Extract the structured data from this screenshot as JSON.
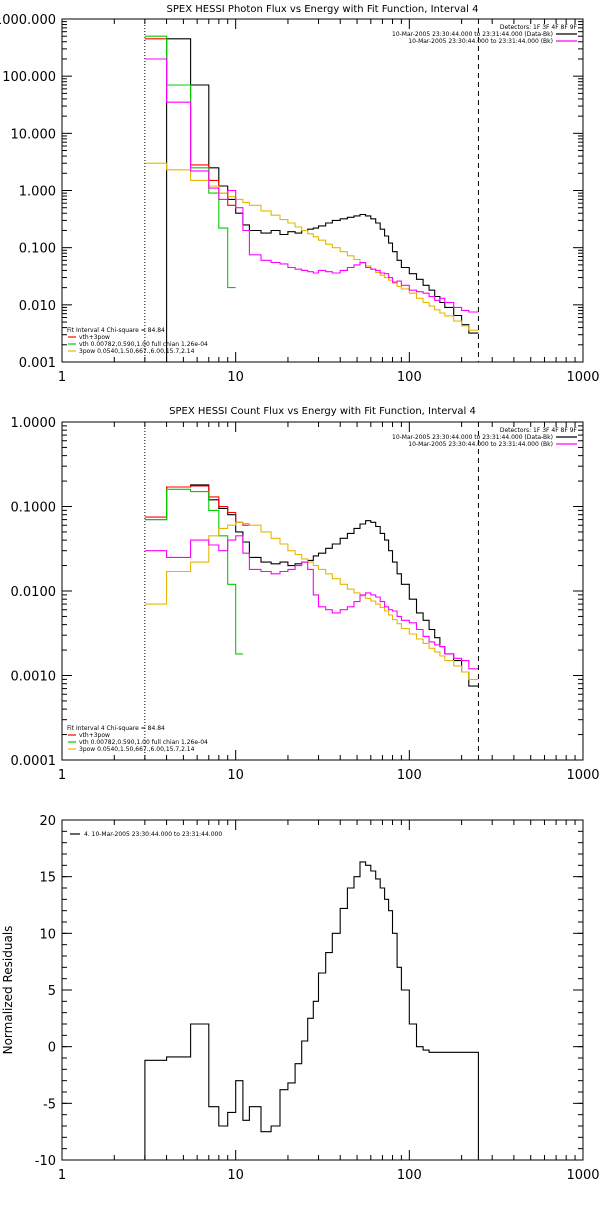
{
  "chart_data": [
    {
      "type": "line",
      "title": "SPEX HESSI Photon Flux vs Energy with Fit Function, Interval 4",
      "xscale": "log",
      "yscale": "log",
      "xlim": [
        1,
        1000
      ],
      "ylim": [
        0.001,
        1000
      ],
      "x_ticks": [
        1,
        10,
        100,
        1000
      ],
      "x_tick_labels": [
        "1",
        "10",
        "100",
        "1000"
      ],
      "y_ticks": [
        0.001,
        0.01,
        0.1,
        1,
        10,
        100,
        1000
      ],
      "y_tick_labels": [
        "0.001",
        "0.010",
        "0.100",
        "1.000",
        "10.000",
        "100.000",
        "1000.000"
      ],
      "legend_top": [
        {
          "text": "Detectors: 1F 3F 4F 8F 9F",
          "color": "#000000",
          "line": false
        },
        {
          "text": "10-Mar-2005 23:30:44.000 to 23:31:44.000 (Data-Bk)",
          "color": "#000000",
          "line": true
        },
        {
          "text": "10-Mar-2005 23:30:44.000 to 23:31:44.000 (Bk)",
          "color": "#ff00ff",
          "line": true
        }
      ],
      "legend_bottom": [
        {
          "text": "Fit Interval 4   Chi-square = 84.84",
          "color": "#000000",
          "line": false
        },
        {
          "text": "vth+3pow",
          "color": "#ff0000",
          "line": true
        },
        {
          "text": "vth 0.00782,0.590,1.00  full chian 1.26e-04",
          "color": "#00cc00",
          "line": true
        },
        {
          "text": "3pow 0.0540,1.50,667.,6.00,15.7,2.14",
          "color": "#e6b800",
          "line": true
        }
      ],
      "vlines": [
        {
          "x": 3,
          "style": "dotted"
        },
        {
          "x": 250,
          "style": "dashed"
        }
      ],
      "series": [
        {
          "color": "#000000",
          "x": [
            3,
            4,
            5.5,
            7,
            8,
            9,
            10,
            11,
            12,
            14,
            16,
            18,
            20,
            22,
            24,
            26,
            28,
            30,
            33,
            36,
            40,
            44,
            48,
            52,
            56,
            60,
            64,
            68,
            72,
            76,
            80,
            85,
            90,
            100,
            110,
            120,
            130,
            140,
            150,
            160,
            180,
            200,
            220,
            250
          ],
          "y": [
            0,
            450,
            70,
            2.5,
            1.2,
            0.7,
            0.4,
            0.25,
            0.2,
            0.18,
            0.2,
            0.17,
            0.19,
            0.18,
            0.2,
            0.21,
            0.22,
            0.24,
            0.27,
            0.3,
            0.32,
            0.34,
            0.36,
            0.38,
            0.36,
            0.32,
            0.27,
            0.21,
            0.16,
            0.12,
            0.085,
            0.06,
            0.045,
            0.035,
            0.028,
            0.022,
            0.018,
            0.014,
            0.011,
            0.009,
            0.0065,
            0.0045,
            0.0032,
            0.0025
          ]
        },
        {
          "color": "#ff0000",
          "x": [
            3,
            4,
            5.5,
            7,
            8,
            9,
            10
          ],
          "y": [
            450,
            70,
            2.8,
            1.5,
            0.9,
            0.55,
            0.35
          ]
        },
        {
          "color": "#00cc00",
          "x": [
            3,
            4,
            5.5,
            7,
            8,
            9,
            10
          ],
          "y": [
            500,
            70,
            2.5,
            0.9,
            0.22,
            0.02,
            0.001
          ]
        },
        {
          "color": "#e6b800",
          "x": [
            3,
            4,
            5.5,
            7,
            8,
            9,
            10,
            11,
            12,
            14,
            16,
            18,
            20,
            22,
            24,
            26,
            28,
            30,
            33,
            36,
            40,
            44,
            48,
            52,
            56,
            60,
            64,
            68,
            72,
            76,
            80,
            85,
            90,
            100,
            110,
            120,
            130,
            140,
            150,
            160,
            180,
            200,
            220,
            250
          ],
          "y": [
            3,
            2.3,
            1.5,
            1.2,
            0.9,
            0.78,
            0.7,
            0.62,
            0.55,
            0.44,
            0.37,
            0.31,
            0.27,
            0.23,
            0.2,
            0.175,
            0.155,
            0.135,
            0.115,
            0.1,
            0.085,
            0.072,
            0.062,
            0.054,
            0.048,
            0.042,
            0.037,
            0.033,
            0.03,
            0.027,
            0.024,
            0.021,
            0.019,
            0.016,
            0.013,
            0.011,
            0.0095,
            0.0082,
            0.0072,
            0.0064,
            0.0052,
            0.0043,
            0.0036,
            0.0022
          ]
        },
        {
          "color": "#ff00ff",
          "x": [
            3,
            4,
            5.5,
            7,
            8,
            9,
            10,
            11,
            12,
            14,
            16,
            18,
            20,
            22,
            24,
            26,
            28,
            30,
            33,
            36,
            40,
            44,
            48,
            52,
            56,
            60,
            64,
            68,
            72,
            76,
            80,
            85,
            90,
            100,
            110,
            120,
            130,
            140,
            150,
            160,
            180,
            200,
            220,
            250
          ],
          "y": [
            200,
            35,
            2.2,
            1.1,
            0.7,
            1,
            0.5,
            0.2,
            0.075,
            0.06,
            0.055,
            0.052,
            0.045,
            0.042,
            0.04,
            0.038,
            0.036,
            0.04,
            0.038,
            0.036,
            0.04,
            0.045,
            0.05,
            0.055,
            0.045,
            0.042,
            0.04,
            0.036,
            0.035,
            0.03,
            0.025,
            0.026,
            0.022,
            0.018,
            0.017,
            0.016,
            0.014,
            0.012,
            0.013,
            0.011,
            0.009,
            0.008,
            0.0075,
            0.005
          ]
        }
      ]
    },
    {
      "type": "line",
      "title": "SPEX HESSI Count Flux vs Energy with Fit Function, Interval 4",
      "xscale": "log",
      "yscale": "log",
      "xlim": [
        1,
        1000
      ],
      "ylim": [
        0.0001,
        1
      ],
      "x_ticks": [
        1,
        10,
        100,
        1000
      ],
      "x_tick_labels": [
        "1",
        "10",
        "100",
        "1000"
      ],
      "y_ticks": [
        0.0001,
        0.001,
        0.01,
        0.1,
        1
      ],
      "y_tick_labels": [
        "0.0001",
        "0.0010",
        "0.0100",
        "0.1000",
        "1.0000"
      ],
      "legend_top": [
        {
          "text": "Detectors: 1F 3F 4F 8F 9F",
          "color": "#000000",
          "line": false
        },
        {
          "text": "10-Mar-2005 23:30:44.000 to 23:31:44.000 (Data-Bk)",
          "color": "#000000",
          "line": true
        },
        {
          "text": "10-Mar-2005 23:30:44.000 to 23:31:44.000 (Bk)",
          "color": "#ff00ff",
          "line": true
        }
      ],
      "legend_bottom": [
        {
          "text": "Fit Interval 4   Chi-square = 84.84",
          "color": "#000000",
          "line": false
        },
        {
          "text": "vth+3pow",
          "color": "#ff0000",
          "line": true
        },
        {
          "text": "vth 0.00782,0.590,1.00  full chian 1.26e-04",
          "color": "#00cc00",
          "line": true
        },
        {
          "text": "3pow 0.0540,1.50,667.,6.00,15.7,2.14",
          "color": "#e6b800",
          "line": true
        }
      ],
      "vlines": [
        {
          "x": 3,
          "style": "dotted"
        },
        {
          "x": 250,
          "style": "dashed"
        }
      ],
      "series": [
        {
          "color": "#000000",
          "x": [
            3,
            4,
            5.5,
            7,
            8,
            9,
            10,
            11,
            12,
            14,
            16,
            18,
            20,
            22,
            24,
            26,
            28,
            30,
            33,
            36,
            40,
            44,
            48,
            52,
            56,
            60,
            64,
            68,
            72,
            76,
            80,
            85,
            90,
            100,
            110,
            120,
            130,
            140,
            150,
            160,
            180,
            200,
            220,
            250
          ],
          "y": [
            0.07,
            0.17,
            0.18,
            0.12,
            0.095,
            0.08,
            0.05,
            0.038,
            0.025,
            0.022,
            0.021,
            0.022,
            0.02,
            0.021,
            0.022,
            0.023,
            0.026,
            0.028,
            0.032,
            0.036,
            0.042,
            0.048,
            0.055,
            0.062,
            0.068,
            0.065,
            0.058,
            0.048,
            0.04,
            0.03,
            0.022,
            0.016,
            0.012,
            0.008,
            0.0055,
            0.0045,
            0.0035,
            0.0028,
            0.0022,
            0.0018,
            0.0015,
            0.0011,
            0.00075,
            0.0005
          ]
        },
        {
          "color": "#ff0000",
          "x": [
            3,
            4,
            5.5,
            7,
            8,
            9,
            10,
            11,
            12
          ],
          "y": [
            0.075,
            0.17,
            0.175,
            0.13,
            0.1,
            0.085,
            0.065,
            0.06,
            0.06
          ]
        },
        {
          "color": "#00cc00",
          "x": [
            3,
            4,
            5.5,
            7,
            8,
            9,
            10,
            11
          ],
          "y": [
            0.07,
            0.16,
            0.15,
            0.09,
            0.045,
            0.012,
            0.0018,
            0.0001
          ]
        },
        {
          "color": "#e6b800",
          "x": [
            3,
            4,
            5.5,
            7,
            8,
            9,
            10,
            11,
            12,
            14,
            16,
            18,
            20,
            22,
            24,
            26,
            28,
            30,
            33,
            36,
            40,
            44,
            48,
            52,
            56,
            60,
            64,
            68,
            72,
            76,
            80,
            85,
            90,
            100,
            110,
            120,
            130,
            140,
            150,
            160,
            180,
            200,
            220,
            250
          ],
          "y": [
            0.007,
            0.017,
            0.022,
            0.045,
            0.055,
            0.06,
            0.065,
            0.063,
            0.06,
            0.05,
            0.042,
            0.036,
            0.03,
            0.027,
            0.024,
            0.022,
            0.02,
            0.018,
            0.016,
            0.014,
            0.012,
            0.0105,
            0.0095,
            0.0088,
            0.0082,
            0.0076,
            0.007,
            0.0064,
            0.0058,
            0.0052,
            0.0046,
            0.0041,
            0.0036,
            0.0031,
            0.0027,
            0.0024,
            0.0021,
            0.0019,
            0.0017,
            0.0015,
            0.0013,
            0.0011,
            0.0009,
            0.0006
          ]
        },
        {
          "color": "#ff00ff",
          "x": [
            3,
            4,
            5.5,
            7,
            8,
            9,
            10,
            11,
            12,
            14,
            16,
            18,
            20,
            22,
            24,
            26,
            28,
            30,
            33,
            36,
            40,
            44,
            48,
            52,
            56,
            60,
            64,
            68,
            72,
            76,
            80,
            85,
            90,
            100,
            110,
            120,
            130,
            140,
            150,
            160,
            180,
            200,
            220,
            250
          ],
          "y": [
            0.03,
            0.025,
            0.04,
            0.035,
            0.03,
            0.04,
            0.045,
            0.028,
            0.018,
            0.017,
            0.016,
            0.017,
            0.018,
            0.02,
            0.022,
            0.018,
            0.009,
            0.0065,
            0.006,
            0.0055,
            0.006,
            0.0065,
            0.0075,
            0.009,
            0.0095,
            0.009,
            0.0085,
            0.0075,
            0.0065,
            0.006,
            0.0058,
            0.005,
            0.0045,
            0.0042,
            0.0035,
            0.0029,
            0.0025,
            0.0023,
            0.0022,
            0.0018,
            0.0016,
            0.0015,
            0.0012,
            0.0009
          ]
        }
      ]
    },
    {
      "type": "line",
      "title": "",
      "ylabel": "Normalized Residuals",
      "xscale": "log",
      "yscale": "linear",
      "xlim": [
        1,
        1000
      ],
      "ylim": [
        -10,
        20
      ],
      "x_ticks": [
        1,
        10,
        100,
        1000
      ],
      "x_tick_labels": [
        "1",
        "10",
        "100",
        "1000"
      ],
      "y_ticks": [
        -10,
        -5,
        0,
        5,
        10,
        15,
        20
      ],
      "y_tick_labels": [
        "-10",
        "-5",
        "0",
        "5",
        "10",
        "15",
        "20"
      ],
      "legend_top": [],
      "legend_bottom": [],
      "legend_left": [
        {
          "text": "4. 10-Mar-2005 23:30:44.000 to 23:31:44.000",
          "color": "#000000",
          "line": true
        }
      ],
      "vlines": [],
      "series": [
        {
          "color": "#000000",
          "x": [
            3,
            4,
            5.5,
            7,
            8,
            9,
            10,
            11,
            12,
            14,
            16,
            18,
            20,
            22,
            24,
            26,
            28,
            30,
            33,
            36,
            40,
            44,
            48,
            52,
            56,
            60,
            64,
            68,
            72,
            76,
            80,
            85,
            90,
            100,
            110,
            120,
            130,
            140,
            150,
            160,
            180,
            200,
            220,
            250
          ],
          "y": [
            -1.2,
            -0.9,
            2,
            -5.3,
            -7,
            -5.8,
            -3,
            -6.5,
            -5.3,
            -7.5,
            -7,
            -3.8,
            -3.2,
            -1.5,
            0.5,
            2.5,
            4,
            6.5,
            8.3,
            10,
            12.2,
            14,
            15,
            16.3,
            16,
            15.5,
            14.8,
            14,
            13,
            12,
            10,
            7,
            5,
            2,
            0,
            -0.3,
            -0.5,
            -0.5,
            -0.5,
            -0.5,
            -0.5,
            -0.5,
            -0.5,
            -0.5
          ]
        }
      ]
    }
  ]
}
